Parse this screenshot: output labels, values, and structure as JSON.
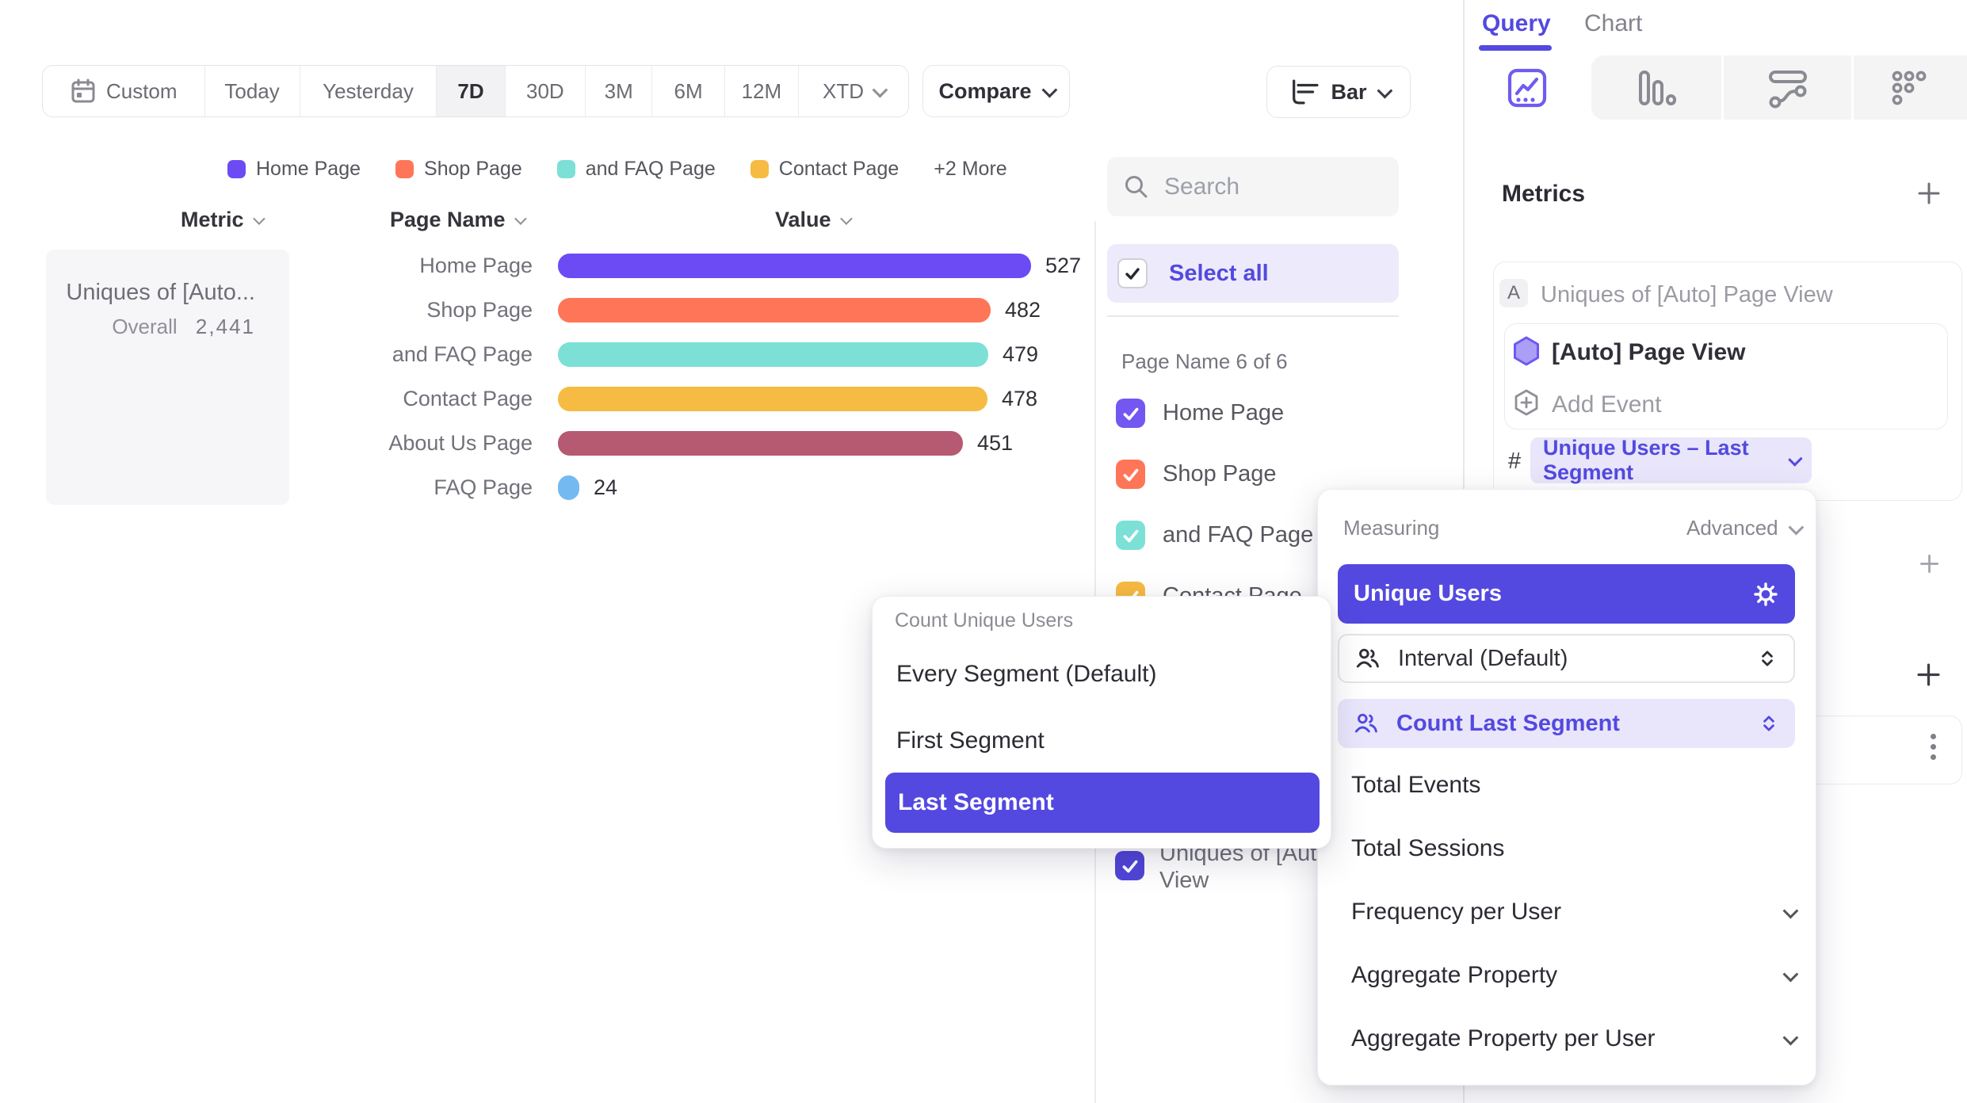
{
  "toolbar": {
    "date_presets": [
      "Custom",
      "Today",
      "Yesterday",
      "7D",
      "30D",
      "3M",
      "6M",
      "12M",
      "XTD"
    ],
    "active_preset": "7D",
    "compare": "Compare",
    "chart_type": "Bar"
  },
  "legend": {
    "items": [
      {
        "label": "Home Page",
        "color": "#6C4BF4"
      },
      {
        "label": "Shop Page",
        "color": "#FF7557"
      },
      {
        "label": "and FAQ Page",
        "color": "#7CE0D6"
      },
      {
        "label": "Contact Page",
        "color": "#F6BB42"
      }
    ],
    "more": "+2 More"
  },
  "columns": {
    "metric": "Metric",
    "page_name": "Page Name",
    "value": "Value"
  },
  "metric_card": {
    "title": "Uniques of [Auto...",
    "overall_label": "Overall",
    "overall_value": "2,441"
  },
  "chart_data": {
    "type": "bar",
    "orientation": "horizontal",
    "series_name": "Uniques of [Auto] Page View",
    "categories": [
      "Home Page",
      "Shop Page",
      "and FAQ Page",
      "Contact Page",
      "About Us Page",
      "FAQ Page"
    ],
    "values": [
      527,
      482,
      479,
      478,
      451,
      24
    ],
    "colors": [
      "#6C4BF4",
      "#FF7557",
      "#7CE0D6",
      "#F6BB42",
      "#B55A70",
      "#74B9F0"
    ],
    "overall_total": 2441,
    "value_labels_shown": true,
    "gridlines": false
  },
  "filters": {
    "search_placeholder": "Search",
    "select_all": "Select all",
    "group_label": "Page Name 6 of 6",
    "options": [
      {
        "label": "Home Page",
        "color": "#7357F0",
        "checked": true
      },
      {
        "label": "Shop Page",
        "color": "#FF7557",
        "checked": true
      },
      {
        "label": "and FAQ Page",
        "color": "#7CE0D6",
        "checked": true
      },
      {
        "label": "Contact Page",
        "color": "#F6BB42",
        "checked": true
      }
    ],
    "metric_option": {
      "label": "Uniques of [Auto] Page View",
      "color": "#5145D8",
      "checked": true
    }
  },
  "segment_menu": {
    "title": "Count Unique Users",
    "options": [
      "Every Segment (Default)",
      "First Segment",
      "Last Segment"
    ],
    "selected": "Last Segment"
  },
  "measuring_menu": {
    "label": "Measuring",
    "advanced": "Advanced",
    "primary": "Unique Users",
    "interval": "Interval (Default)",
    "count_mode": "Count Last Segment",
    "simple_options": [
      "Total Events",
      "Total Sessions"
    ],
    "expandable_options": [
      "Frequency per User",
      "Aggregate Property",
      "Aggregate Property per User"
    ]
  },
  "query_panel": {
    "tabs": [
      "Query",
      "Chart"
    ],
    "active_tab": "Query",
    "metrics_title": "Metrics",
    "row_letter": "A",
    "row_title": "Uniques of [Auto] Page View",
    "event_label": "[Auto] Page View",
    "add_event": "Add Event",
    "hash": "#",
    "aggregation_pill": "Unique Users – Last Segment"
  },
  "icons": {
    "calendar-icon": "calendar outline",
    "search-icon": "magnifier",
    "chevron-down-icon": "v chevron",
    "bar-chart-icon": "horizontal bars",
    "insights-icon": "framed trend line",
    "funnels-icon": "vertical bars",
    "flows-icon": "pill and squiggle",
    "retention-icon": "dot staircase",
    "gear-icon": "cog",
    "users-icon": "two people",
    "stepper-icon": "up-down chevrons",
    "plus-icon": "plus",
    "kebab-icon": "three vertical dots",
    "hexagon-icon": "event hexagon",
    "check-icon": "checkmark"
  }
}
